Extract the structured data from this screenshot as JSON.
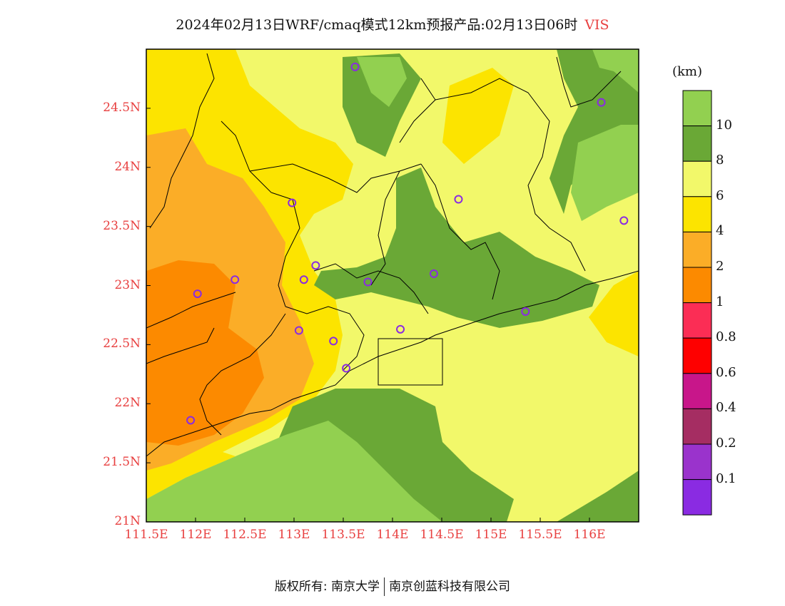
{
  "title": {
    "text": "2024年02月13日WRF/cmaq模式12km预报产品:02月13日06时",
    "variable": "VIS"
  },
  "colorbar": {
    "unit": "(km)",
    "levels": [
      "10",
      "8",
      "6",
      "4",
      "2",
      "1",
      "0.8",
      "0.6",
      "0.4",
      "0.2",
      "0.1"
    ],
    "colors": [
      "#92d050",
      "#6aa836",
      "#f2f86a",
      "#fce400",
      "#fbad27",
      "#fc8a00",
      "#fb2d55",
      "#fe0000",
      "#c8168a",
      "#a52d62",
      "#9a33cc",
      "#8a2be2"
    ]
  },
  "map": {
    "lat_ticks": [
      "24.5N",
      "24N",
      "23.5N",
      "23N",
      "22.5N",
      "22N",
      "21.5N",
      "21N"
    ],
    "lon_ticks": [
      "111.5E",
      "112E",
      "112.5E",
      "113E",
      "113.5E",
      "114E",
      "114.5E",
      "115E",
      "115.5E",
      "116E"
    ],
    "lon_range": [
      111.5,
      116.5
    ],
    "lat_range": [
      21.0,
      25.0
    ],
    "stations": [
      {
        "lon": 113.62,
        "lat": 24.85
      },
      {
        "lon": 116.12,
        "lat": 24.55
      },
      {
        "lon": 112.98,
        "lat": 23.7
      },
      {
        "lon": 114.67,
        "lat": 23.73
      },
      {
        "lon": 116.35,
        "lat": 23.55
      },
      {
        "lon": 113.22,
        "lat": 23.17
      },
      {
        "lon": 112.4,
        "lat": 23.05
      },
      {
        "lon": 113.1,
        "lat": 23.05
      },
      {
        "lon": 113.75,
        "lat": 23.03
      },
      {
        "lon": 114.42,
        "lat": 23.1
      },
      {
        "lon": 112.02,
        "lat": 22.93
      },
      {
        "lon": 115.35,
        "lat": 22.78
      },
      {
        "lon": 113.05,
        "lat": 22.62
      },
      {
        "lon": 113.4,
        "lat": 22.53
      },
      {
        "lon": 114.08,
        "lat": 22.63
      },
      {
        "lon": 113.53,
        "lat": 22.3
      },
      {
        "lon": 111.95,
        "lat": 21.86
      }
    ]
  },
  "footer": {
    "left": "版权所有: 南京大学",
    "right": "南京创蓝科技有限公司"
  }
}
